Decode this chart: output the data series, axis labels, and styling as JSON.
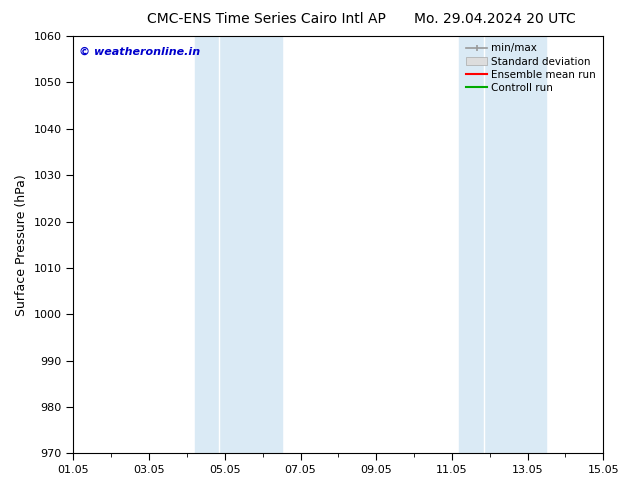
{
  "title_left": "CMC-ENS Time Series Cairo Intl AP",
  "title_right": "Mo. 29.04.2024 20 UTC",
  "ylabel": "Surface Pressure (hPa)",
  "ylim": [
    970,
    1060
  ],
  "yticks": [
    970,
    980,
    990,
    1000,
    1010,
    1020,
    1030,
    1040,
    1050,
    1060
  ],
  "x_start_days": 0,
  "x_end_days": 14,
  "xtick_labels": [
    "01.05",
    "03.05",
    "05.05",
    "07.05",
    "09.05",
    "11.05",
    "13.05",
    "15.05"
  ],
  "xtick_positions": [
    0,
    2,
    4,
    6,
    8,
    10,
    12,
    14
  ],
  "shaded_bands": [
    {
      "x_start": 3.2,
      "x_end": 3.85,
      "color": "#daeaf5"
    },
    {
      "x_start": 3.85,
      "x_end": 5.5,
      "color": "#daeaf5"
    },
    {
      "x_start": 10.2,
      "x_end": 10.85,
      "color": "#daeaf5"
    },
    {
      "x_start": 10.85,
      "x_end": 12.5,
      "color": "#daeaf5"
    }
  ],
  "band_separators": [
    3.85,
    10.85
  ],
  "watermark_text": "© weatheronline.in",
  "watermark_color": "#0000cc",
  "legend_entries": [
    {
      "label": "min/max",
      "color": "#999999",
      "lw": 1.2,
      "type": "errorbar"
    },
    {
      "label": "Standard deviation",
      "color": "#dddddd",
      "lw": 6,
      "type": "patch"
    },
    {
      "label": "Ensemble mean run",
      "color": "#ff0000",
      "lw": 1.5,
      "type": "line"
    },
    {
      "label": "Controll run",
      "color": "#00aa00",
      "lw": 1.5,
      "type": "line"
    }
  ],
  "background_color": "#ffffff",
  "plot_bg_color": "#ffffff",
  "title_fontsize": 10,
  "tick_fontsize": 8,
  "ylabel_fontsize": 9
}
